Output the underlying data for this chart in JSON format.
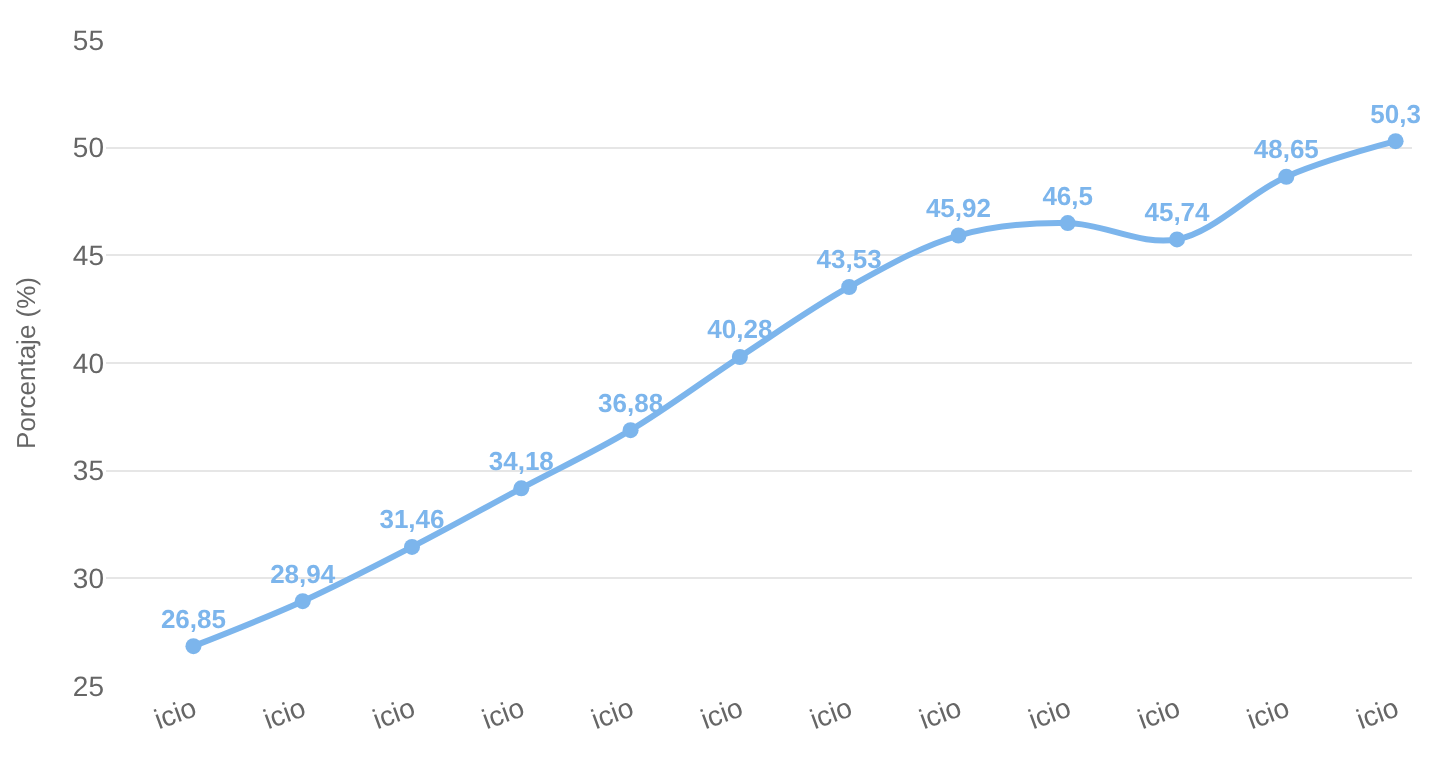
{
  "chart_data": {
    "type": "line",
    "ylabel": "Porcentaje (%)",
    "categories": [
      "icio",
      "icio",
      "icio",
      "icio",
      "icio",
      "icio",
      "icio",
      "icio",
      "icio",
      "icio",
      "icio",
      "icio"
    ],
    "series": [
      {
        "color": "#7cb5ec",
        "values": [
          26.85,
          28.94,
          31.46,
          34.18,
          36.88,
          40.28,
          43.53,
          45.92,
          46.5,
          45.74,
          48.65,
          50.3
        ],
        "value_labels": [
          "26,85",
          "28,94",
          "31,46",
          "34,18",
          "36,88",
          "40,28",
          "43,53",
          "45,92",
          "46,5",
          "45,74",
          "48,65",
          "50,3"
        ]
      }
    ],
    "ylim": [
      25,
      55
    ],
    "yticks": [
      25,
      30,
      35,
      40,
      45,
      50,
      55
    ],
    "grid": "y",
    "marker": "circle",
    "line_style": "solid",
    "legend": false
  }
}
